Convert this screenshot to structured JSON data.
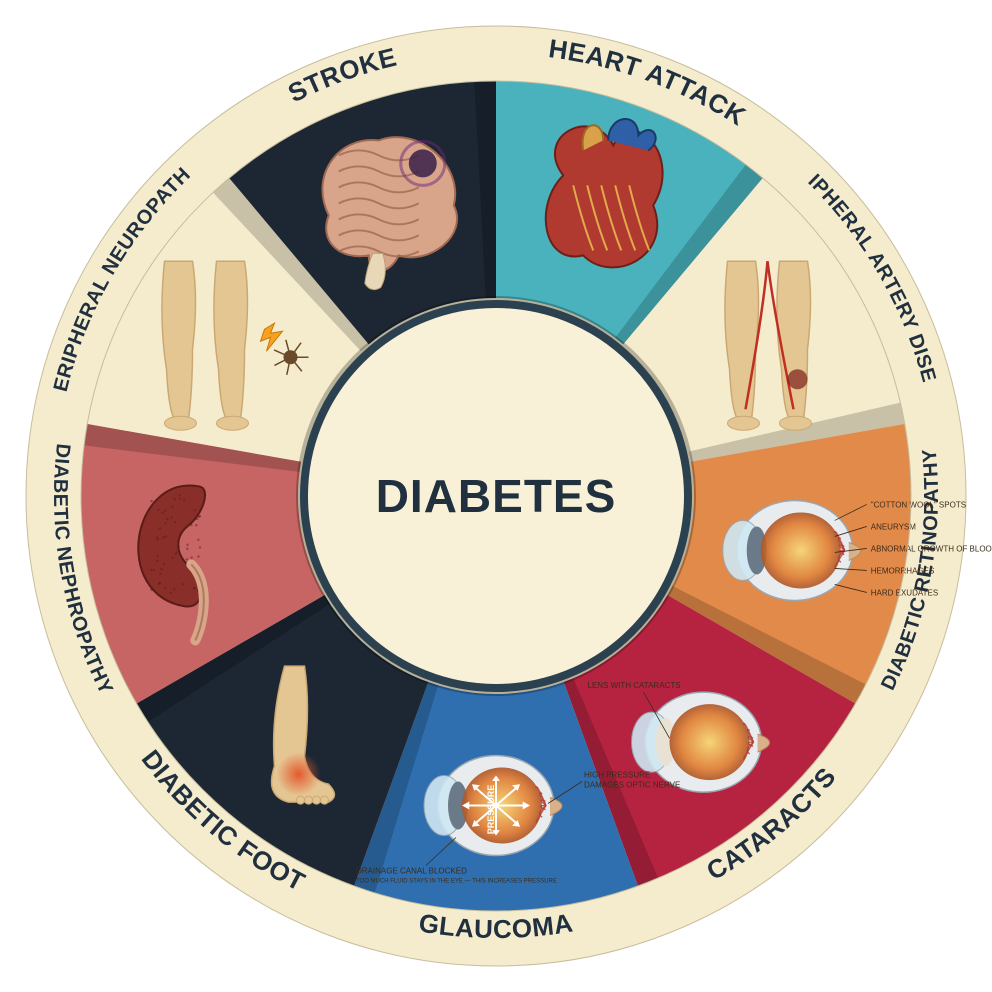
{
  "diagram": {
    "type": "infographic-wheel",
    "center_label": "DIABETES",
    "center_label_color": "#20303f",
    "center_label_fontsize": 46,
    "background_color": "#ffffff",
    "outer_ring_color": "#f5ecce",
    "outer_stroke_color": "#c7bd9c",
    "hub_fill": "#f8f1d7",
    "hub_stroke": "#2b4150",
    "ring_text_color": "#20303f",
    "ring_text_fontsize": 24,
    "outer_radius": 470,
    "wedge_outer_radius": 415,
    "hub_radius": 192,
    "segments": [
      {
        "key": "heart_attack",
        "label": "HEART ATTACK",
        "start_deg": -90,
        "end_deg": -50,
        "fill": "#49b2bc",
        "icon": "heart"
      },
      {
        "key": "peripheral_artery_disease",
        "label": "PERIPHERAL ARTERY DISEASE",
        "start_deg": -50,
        "end_deg": -10,
        "fill": "#f5ecce",
        "icon": "legs_arteries"
      },
      {
        "key": "diabetic_retinopathy",
        "label": "DIABETIC RETINOPATHY",
        "start_deg": -10,
        "end_deg": 30,
        "fill": "#e28a4a",
        "icon": "eye_retinopathy"
      },
      {
        "key": "cataracts",
        "label": "CATARACTS",
        "start_deg": 30,
        "end_deg": 70,
        "fill": "#b62341",
        "icon": "eye_cataract"
      },
      {
        "key": "glaucoma",
        "label": "GLAUCOMA",
        "start_deg": 70,
        "end_deg": 110,
        "fill": "#2f6fb0",
        "icon": "eye_glaucoma"
      },
      {
        "key": "diabetic_foot",
        "label": "DIABETIC FOOT",
        "start_deg": 110,
        "end_deg": 150,
        "fill": "#1c2733",
        "icon": "foot"
      },
      {
        "key": "diabetic_nephropathy",
        "label": "DIABETIC NEPHROPATHY",
        "start_deg": 150,
        "end_deg": 190,
        "fill": "#c76464",
        "icon": "kidney"
      },
      {
        "key": "peripheral_neuropathy",
        "label": "PERIPHERAL NEUROPATHY",
        "start_deg": 190,
        "end_deg": 230,
        "fill": "#f5ecce",
        "icon": "legs_nerves"
      },
      {
        "key": "stroke",
        "label": "STROKE",
        "start_deg": 230,
        "end_deg": 270,
        "fill": "#1c2733",
        "icon": "brain"
      }
    ],
    "retinopathy_labels": [
      "\"COTTON WOOL\" SPOTS",
      "ANEURYSM",
      "ABNORMAL GROWTH OF BLOOD VESSELS",
      "HEMORRHAGES",
      "HARD EXUDATES"
    ],
    "cataract_label": "LENS WITH CATARACTS",
    "glaucoma_label_inner": "PRESSURE",
    "glaucoma_label_side": "HIGH PRESSURE DAMAGES OPTIC NERVE",
    "glaucoma_label_bottom": "DRAINAGE CANAL BLOCKED — TOO MUCH FLUID STAYS IN THE EYE, THIS INCREASES PRESSURE",
    "skin_color": "#e4c693",
    "skin_shadow": "#cba873",
    "muscle_red": "#b03a30",
    "vein_blue": "#2f5fa6",
    "eye_white": "#e8ecef",
    "iris_dark": "#2a3440",
    "pupil": "#0f1419",
    "annotation_color": "#3b2b1a"
  }
}
